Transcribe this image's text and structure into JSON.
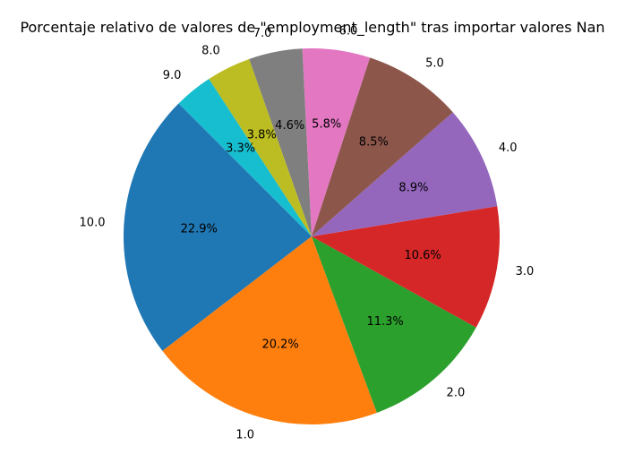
{
  "chart_data": {
    "type": "pie",
    "title": "Porcentaje relativo de valores de \"employment_length\" tras importar valores Nan",
    "categories": [
      "10.0",
      "1.0",
      "2.0",
      "3.0",
      "4.0",
      "5.0",
      "6.0",
      "7.0",
      "8.0",
      "9.0"
    ],
    "values": [
      22.9,
      20.2,
      11.3,
      10.6,
      8.9,
      8.5,
      5.8,
      4.6,
      3.8,
      3.3
    ],
    "percent_labels": [
      "22.9%",
      "20.2%",
      "11.3%",
      "10.6%",
      "8.9%",
      "8.5%",
      "5.8%",
      "4.6%",
      "3.8%",
      "3.3%"
    ],
    "colors": [
      "#1f77b4",
      "#ff7f0e",
      "#2ca02c",
      "#d62728",
      "#9467bd",
      "#8c564b",
      "#e377c2",
      "#7f7f7f",
      "#bcbd22",
      "#17becf"
    ],
    "start_angle_deg": 135,
    "direction": "counterclockwise"
  }
}
